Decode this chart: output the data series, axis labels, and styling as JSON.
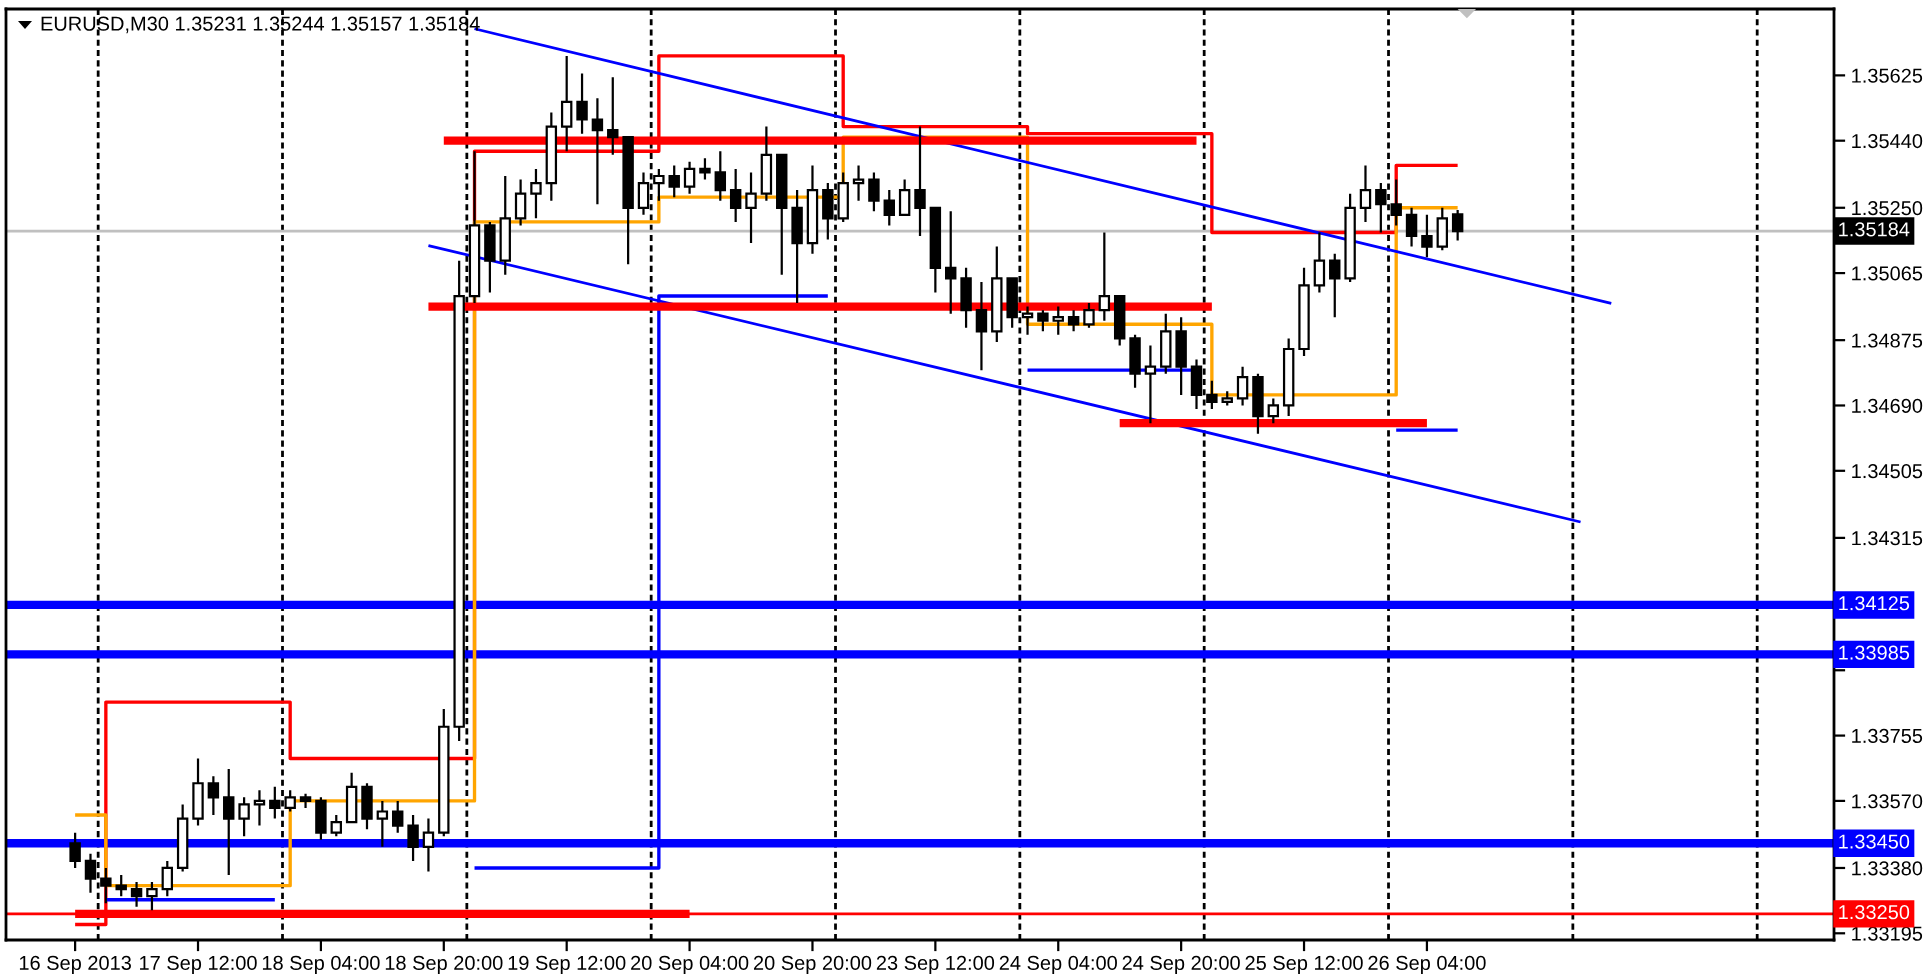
{
  "chart_data": {
    "type": "candlestick",
    "title": "EURUSD,M30 1.35231 1.35244 1.35157 1.35184",
    "color": "#000000",
    "categories": [
      "16 Sep 2013",
      null,
      null,
      null,
      null,
      null,
      null,
      null,
      "17 Sep 12:00",
      null,
      null,
      null,
      null,
      null,
      null,
      null,
      "18 Sep 04:00",
      null,
      null,
      null,
      null,
      null,
      null,
      null,
      "18 Sep 20:00",
      null,
      null,
      null,
      null,
      null,
      null,
      null,
      "19 Sep 12:00",
      null,
      null,
      null,
      null,
      null,
      null,
      null,
      "20 Sep 04:00",
      null,
      null,
      null,
      null,
      null,
      null,
      null,
      "20 Sep 20:00",
      null,
      null,
      null,
      null,
      null,
      null,
      null,
      "23 Sep 12:00",
      null,
      null,
      null,
      null,
      null,
      null,
      null,
      "24 Sep 04:00",
      null,
      null,
      null,
      null,
      null,
      null,
      null,
      "24 Sep 20:00",
      null,
      null,
      null,
      null,
      null,
      null,
      null,
      "25 Sep 12:00",
      null,
      null,
      null,
      null,
      null,
      null,
      null,
      "26 Sep 04:00",
      null,
      null,
      null,
      null,
      null,
      null,
      null,
      null,
      null,
      null,
      null,
      null,
      null,
      null,
      null,
      null,
      null,
      null,
      null,
      null,
      null,
      null,
      null,
      null,
      null,
      null
    ],
    "ohlc": [
      [
        1.3345,
        1.3348,
        1.3338,
        1.334
      ],
      [
        1.334,
        1.3342,
        1.3331,
        1.3335
      ],
      [
        1.3335,
        1.3338,
        1.3328,
        1.3333
      ],
      [
        1.3333,
        1.3336,
        1.333,
        1.3332
      ],
      [
        1.3332,
        1.3334,
        1.3327,
        1.333
      ],
      [
        1.333,
        1.3334,
        1.3326,
        1.3332
      ],
      [
        1.3332,
        1.334,
        1.333,
        1.3338
      ],
      [
        1.3338,
        1.3356,
        1.3337,
        1.3352
      ],
      [
        1.3352,
        1.3369,
        1.335,
        1.3362
      ],
      [
        1.3362,
        1.3364,
        1.3353,
        1.3358
      ],
      [
        1.3358,
        1.3366,
        1.3336,
        1.3352
      ],
      [
        1.3352,
        1.3358,
        1.3347,
        1.3356
      ],
      [
        1.3356,
        1.336,
        1.335,
        1.3357
      ],
      [
        1.3357,
        1.3361,
        1.3352,
        1.3355
      ],
      [
        1.3355,
        1.336,
        1.3354,
        1.3358
      ],
      [
        1.3358,
        1.3359,
        1.3355,
        1.3357
      ],
      [
        1.3357,
        1.3358,
        1.3346,
        1.3348
      ],
      [
        1.3348,
        1.3353,
        1.3347,
        1.3351
      ],
      [
        1.3351,
        1.3365,
        1.3351,
        1.3361
      ],
      [
        1.3361,
        1.3362,
        1.3349,
        1.3352
      ],
      [
        1.3352,
        1.3357,
        1.3344,
        1.3354
      ],
      [
        1.3354,
        1.3357,
        1.3348,
        1.335
      ],
      [
        1.335,
        1.3353,
        1.334,
        1.3344
      ],
      [
        1.3344,
        1.3352,
        1.3337,
        1.3348
      ],
      [
        1.3348,
        1.3383,
        1.3347,
        1.3378
      ],
      [
        1.3378,
        1.351,
        1.3374,
        1.35
      ],
      [
        1.35,
        1.3541,
        1.3498,
        1.352
      ],
      [
        1.352,
        1.3521,
        1.3501,
        1.351
      ],
      [
        1.351,
        1.3534,
        1.3506,
        1.3522
      ],
      [
        1.3522,
        1.3533,
        1.352,
        1.3529
      ],
      [
        1.3529,
        1.3536,
        1.3522,
        1.3532
      ],
      [
        1.3532,
        1.3552,
        1.3527,
        1.3548
      ],
      [
        1.3548,
        1.3568,
        1.3541,
        1.3555
      ],
      [
        1.3555,
        1.3563,
        1.3546,
        1.355
      ],
      [
        1.355,
        1.3556,
        1.3526,
        1.3547
      ],
      [
        1.3547,
        1.3562,
        1.354,
        1.3545
      ],
      [
        1.3545,
        1.3545,
        1.3509,
        1.3525
      ],
      [
        1.3525,
        1.3535,
        1.3523,
        1.3532
      ],
      [
        1.3532,
        1.3536,
        1.3527,
        1.3534
      ],
      [
        1.3534,
        1.3537,
        1.3528,
        1.3531
      ],
      [
        1.3531,
        1.3538,
        1.3529,
        1.3536
      ],
      [
        1.3536,
        1.3539,
        1.3533,
        1.3535
      ],
      [
        1.3535,
        1.3541,
        1.3527,
        1.353
      ],
      [
        1.353,
        1.3536,
        1.3521,
        1.3525
      ],
      [
        1.3525,
        1.3535,
        1.3515,
        1.3529
      ],
      [
        1.3529,
        1.3548,
        1.3527,
        1.354
      ],
      [
        1.354,
        1.354,
        1.3506,
        1.3525
      ],
      [
        1.3525,
        1.353,
        1.3498,
        1.3515
      ],
      [
        1.3515,
        1.3537,
        1.3512,
        1.353
      ],
      [
        1.353,
        1.3532,
        1.3516,
        1.3522
      ],
      [
        1.3522,
        1.3535,
        1.3521,
        1.3532
      ],
      [
        1.3532,
        1.3537,
        1.3527,
        1.3533
      ],
      [
        1.3533,
        1.3535,
        1.3524,
        1.3527
      ],
      [
        1.3527,
        1.353,
        1.352,
        1.3523
      ],
      [
        1.3523,
        1.3533,
        1.3523,
        1.353
      ],
      [
        1.353,
        1.3548,
        1.3517,
        1.3525
      ],
      [
        1.3525,
        1.3525,
        1.3501,
        1.3508
      ],
      [
        1.3508,
        1.3524,
        1.3495,
        1.3505
      ],
      [
        1.3505,
        1.3508,
        1.3491,
        1.3496
      ],
      [
        1.3496,
        1.3504,
        1.3479,
        1.349
      ],
      [
        1.349,
        1.3514,
        1.3487,
        1.3505
      ],
      [
        1.3505,
        1.3505,
        1.3491,
        1.3494
      ],
      [
        1.3494,
        1.3497,
        1.3489,
        1.3495
      ],
      [
        1.3495,
        1.3496,
        1.349,
        1.3493
      ],
      [
        1.3493,
        1.3497,
        1.3489,
        1.3494
      ],
      [
        1.3494,
        1.3496,
        1.349,
        1.3492
      ],
      [
        1.3492,
        1.3498,
        1.3491,
        1.3496
      ],
      [
        1.3496,
        1.3518,
        1.3493,
        1.35
      ],
      [
        1.35,
        1.35,
        1.3486,
        1.3488
      ],
      [
        1.3488,
        1.3489,
        1.3474,
        1.3478
      ],
      [
        1.3478,
        1.3486,
        1.3464,
        1.348
      ],
      [
        1.348,
        1.3495,
        1.3478,
        1.349
      ],
      [
        1.349,
        1.3494,
        1.3472,
        1.348
      ],
      [
        1.348,
        1.3482,
        1.3468,
        1.3472
      ],
      [
        1.3472,
        1.3476,
        1.3468,
        1.347
      ],
      [
        1.347,
        1.3473,
        1.3469,
        1.3471
      ],
      [
        1.3471,
        1.348,
        1.3469,
        1.3477
      ],
      [
        1.3477,
        1.3478,
        1.3461,
        1.3466
      ],
      [
        1.3466,
        1.3471,
        1.3464,
        1.3469
      ],
      [
        1.3469,
        1.3488,
        1.3466,
        1.3485
      ],
      [
        1.3485,
        1.3508,
        1.3483,
        1.3503
      ],
      [
        1.3503,
        1.3518,
        1.3501,
        1.351
      ],
      [
        1.351,
        1.3512,
        1.3494,
        1.3505
      ],
      [
        1.3505,
        1.3529,
        1.3504,
        1.3525
      ],
      [
        1.3525,
        1.3537,
        1.3521,
        1.353
      ],
      [
        1.353,
        1.3532,
        1.3518,
        1.3526
      ],
      [
        1.3526,
        1.3533,
        1.352,
        1.3523
      ],
      [
        1.3523,
        1.3525,
        1.3514,
        1.3517
      ],
      [
        1.3517,
        1.3523,
        1.3511,
        1.3514
      ],
      [
        1.3514,
        1.3525,
        1.3513,
        1.3522
      ],
      [
        1.35231,
        1.35244,
        1.35157,
        1.35184
      ],
      null,
      null,
      null,
      null,
      null,
      null,
      null,
      null,
      null,
      null,
      null,
      null,
      null,
      null,
      null,
      null,
      null,
      null,
      null,
      null,
      null,
      null,
      null,
      null
    ],
    "series": [
      {
        "type": "step",
        "color": "#ff0000",
        "values": [
          1.3322,
          1.3322,
          1.3385,
          1.3385,
          1.3385,
          1.3385,
          1.3385,
          1.3385,
          1.3385,
          1.3385,
          1.3385,
          1.3385,
          1.3385,
          1.3385,
          1.3369,
          1.3369,
          1.3369,
          1.3369,
          1.3369,
          1.3369,
          1.3369,
          1.3369,
          1.3369,
          1.3369,
          1.3369,
          1.3369,
          1.3541,
          1.3541,
          1.3541,
          1.3541,
          1.3541,
          1.3541,
          1.3541,
          1.3541,
          1.3541,
          1.3541,
          1.3541,
          1.3541,
          1.3568,
          1.3568,
          1.3568,
          1.3568,
          1.3568,
          1.3568,
          1.3568,
          1.3568,
          1.3568,
          1.3568,
          1.3568,
          1.3568,
          1.3548,
          1.3548,
          1.3548,
          1.3548,
          1.3548,
          1.3548,
          1.3548,
          1.3548,
          1.3548,
          1.3548,
          1.3548,
          1.3548,
          1.3546,
          1.3546,
          1.3546,
          1.3546,
          1.3546,
          1.3546,
          1.3546,
          1.3546,
          1.3546,
          1.3546,
          1.3546,
          1.3546,
          1.3518,
          1.3518,
          1.3518,
          1.3518,
          1.3518,
          1.3518,
          1.3518,
          1.3518,
          1.3518,
          1.3518,
          1.3518,
          1.3518,
          1.3537,
          1.3537,
          1.3537,
          1.3537,
          1.3537,
          null,
          null,
          null,
          null,
          null,
          null,
          null,
          null,
          null,
          null,
          null,
          null,
          null,
          null,
          null,
          null,
          null,
          null,
          null,
          null,
          null,
          null,
          null,
          null
        ]
      },
      {
        "type": "step",
        "color": "#ffa500",
        "values": [
          1.3353,
          1.3353,
          1.3333,
          1.3333,
          1.3333,
          1.3333,
          1.3333,
          1.3333,
          1.3333,
          1.3333,
          1.3333,
          1.3333,
          1.3333,
          1.3333,
          1.3357,
          1.3357,
          1.3357,
          1.3357,
          1.3357,
          1.3357,
          1.3357,
          1.3357,
          1.3357,
          1.3357,
          1.3357,
          1.3357,
          1.3521,
          1.3521,
          1.3521,
          1.3521,
          1.3521,
          1.3521,
          1.3521,
          1.3521,
          1.3521,
          1.3521,
          1.3521,
          1.3521,
          1.3528,
          1.3528,
          1.3528,
          1.3528,
          1.3528,
          1.3528,
          1.3528,
          1.3528,
          1.3528,
          1.3528,
          1.3528,
          1.3528,
          1.3545,
          1.3545,
          1.3545,
          1.3545,
          1.3545,
          1.3545,
          1.3545,
          1.3545,
          1.3545,
          1.3545,
          1.3545,
          1.3545,
          1.3492,
          1.3492,
          1.3492,
          1.3492,
          1.3492,
          1.3492,
          1.3492,
          1.3492,
          1.3492,
          1.3492,
          1.3492,
          1.3492,
          1.3472,
          1.3472,
          1.3472,
          1.3472,
          1.3472,
          1.3472,
          1.3472,
          1.3472,
          1.3472,
          1.3472,
          1.3472,
          1.3472,
          1.3525,
          1.3525,
          1.3525,
          1.3525,
          1.3525,
          null,
          null,
          null,
          null,
          null,
          null,
          null,
          null,
          null,
          null,
          null,
          null,
          null,
          null,
          null,
          null,
          null,
          null,
          null,
          null,
          null,
          null,
          null,
          null
        ]
      },
      {
        "type": "step",
        "color": "#0000ff",
        "values": [
          null,
          null,
          1.3329,
          1.3329,
          1.3329,
          1.3329,
          1.3329,
          1.3329,
          1.3329,
          1.3329,
          1.3329,
          1.3329,
          1.3329,
          1.3329,
          null,
          null,
          null,
          null,
          null,
          null,
          null,
          null,
          null,
          null,
          null,
          null,
          1.3338,
          1.3338,
          1.3338,
          1.3338,
          1.3338,
          1.3338,
          1.3338,
          1.3338,
          1.3338,
          1.3338,
          1.3338,
          1.3338,
          1.35,
          1.35,
          1.35,
          1.35,
          1.35,
          1.35,
          1.35,
          1.35,
          1.35,
          1.35,
          1.35,
          1.35,
          null,
          null,
          null,
          null,
          null,
          null,
          null,
          null,
          null,
          null,
          null,
          null,
          1.3479,
          1.3479,
          1.3479,
          1.3479,
          1.3479,
          1.3479,
          1.3479,
          1.3479,
          1.3479,
          1.3479,
          1.3479,
          1.3479,
          null,
          null,
          null,
          null,
          null,
          null,
          null,
          null,
          null,
          null,
          null,
          null,
          1.3462,
          1.3462,
          1.3462,
          1.3462,
          1.3462,
          null,
          null,
          null,
          null,
          null,
          null,
          null,
          null,
          null,
          null,
          null,
          null,
          null,
          null,
          null,
          null,
          null,
          null,
          null,
          null,
          null,
          null,
          null,
          null
        ]
      },
      {
        "type": "line",
        "color": "#0000ff",
        "values": [
          null,
          null,
          null,
          null,
          null,
          null,
          null,
          null,
          null,
          null,
          null,
          null,
          null,
          null,
          null,
          null,
          null,
          null,
          null,
          null,
          null,
          null,
          null,
          null,
          null,
          null,
          1.35757,
          null,
          null,
          null,
          null,
          null,
          null,
          null,
          null,
          null,
          null,
          null,
          null,
          null,
          null,
          null,
          null,
          null,
          null,
          null,
          null,
          null,
          null,
          null,
          null,
          null,
          null,
          null,
          null,
          null,
          null,
          null,
          null,
          null,
          null,
          null,
          null,
          null,
          null,
          null,
          null,
          null,
          null,
          null,
          null,
          null,
          null,
          null,
          null,
          null,
          null,
          null,
          null,
          null,
          null,
          null,
          null,
          null,
          null,
          null,
          null,
          null,
          null,
          null,
          null,
          null,
          null,
          null,
          null,
          null,
          null,
          null,
          null,
          null,
          1.34979,
          null,
          null,
          null,
          null,
          null,
          null,
          null,
          null,
          null,
          null,
          null,
          null,
          null,
          null
        ]
      },
      {
        "type": "line",
        "color": "#0000ff",
        "values": [
          null,
          null,
          null,
          null,
          null,
          null,
          null,
          null,
          null,
          null,
          null,
          null,
          null,
          null,
          null,
          null,
          null,
          null,
          null,
          null,
          null,
          null,
          null,
          1.35143,
          null,
          null,
          null,
          null,
          null,
          null,
          null,
          null,
          null,
          null,
          null,
          null,
          null,
          null,
          null,
          null,
          null,
          null,
          null,
          null,
          null,
          null,
          null,
          null,
          null,
          null,
          null,
          null,
          null,
          null,
          null,
          null,
          null,
          null,
          null,
          null,
          null,
          null,
          null,
          null,
          null,
          null,
          null,
          null,
          null,
          null,
          null,
          null,
          null,
          null,
          null,
          null,
          null,
          null,
          null,
          null,
          null,
          null,
          null,
          null,
          null,
          null,
          null,
          null,
          null,
          null,
          null,
          null,
          null,
          null,
          null,
          null,
          null,
          null,
          1.3436,
          null,
          null,
          null,
          null,
          null,
          null,
          null,
          null,
          null,
          null,
          null,
          null,
          null,
          null,
          null,
          null
        ]
      },
      {
        "type": "line",
        "color": "#ff0000",
        "values": [
          null,
          null,
          null,
          null,
          null,
          null,
          null,
          null,
          null,
          null,
          null,
          null,
          null,
          null,
          null,
          null,
          null,
          null,
          null,
          null,
          null,
          null,
          null,
          null,
          1.3544,
          1.3544,
          1.3544,
          1.3544,
          1.3544,
          1.3544,
          1.3544,
          1.3544,
          1.3544,
          1.3544,
          1.3544,
          1.3544,
          1.3544,
          1.3544,
          1.3544,
          1.3544,
          1.3544,
          1.3544,
          1.3544,
          1.3544,
          1.3544,
          1.3544,
          1.3544,
          1.3544,
          1.3544,
          1.3544,
          1.3544,
          1.3544,
          1.3544,
          1.3544,
          1.3544,
          1.3544,
          1.3544,
          1.3544,
          1.3544,
          1.3544,
          1.3544,
          1.3544,
          1.3544,
          1.3544,
          1.3544,
          1.3544,
          1.3544,
          1.3544,
          1.3544,
          1.3544,
          1.3544,
          1.3544,
          1.3544,
          1.3544,
          null,
          null,
          null,
          null,
          null,
          null,
          null,
          null,
          null,
          null,
          null,
          null,
          null,
          null,
          null,
          null,
          null,
          null,
          null,
          null,
          null,
          null,
          null,
          null,
          null,
          null,
          null,
          null,
          null,
          null,
          null,
          null,
          null,
          null,
          null,
          null,
          null,
          null,
          null,
          null,
          null
        ]
      },
      {
        "type": "line",
        "color": "#ff0000",
        "values": [
          null,
          null,
          null,
          null,
          null,
          null,
          null,
          null,
          null,
          null,
          null,
          null,
          null,
          null,
          null,
          null,
          null,
          null,
          null,
          null,
          null,
          null,
          null,
          1.3497,
          1.3497,
          1.3497,
          1.3497,
          1.3497,
          1.3497,
          1.3497,
          1.3497,
          1.3497,
          1.3497,
          1.3497,
          1.3497,
          1.3497,
          1.3497,
          1.3497,
          1.3497,
          1.3497,
          1.3497,
          1.3497,
          1.3497,
          1.3497,
          1.3497,
          1.3497,
          1.3497,
          1.3497,
          1.3497,
          1.3497,
          1.3497,
          1.3497,
          1.3497,
          1.3497,
          1.3497,
          1.3497,
          1.3497,
          1.3497,
          1.3497,
          1.3497,
          1.3497,
          1.3497,
          1.3497,
          1.3497,
          1.3497,
          1.3497,
          1.3497,
          1.3497,
          1.3497,
          1.3497,
          1.3497,
          1.3497,
          1.3497,
          1.3497,
          1.3497,
          null,
          null,
          null,
          null,
          null,
          null,
          null,
          null,
          null,
          null,
          null,
          null,
          null,
          null,
          null,
          null,
          null,
          null,
          null,
          null,
          null,
          null,
          null,
          null,
          null,
          null,
          null,
          null,
          null,
          null,
          null,
          null,
          null,
          null,
          null,
          null,
          null,
          null,
          null,
          null
        ]
      },
      {
        "type": "line",
        "color": "#ff0000",
        "values": [
          null,
          null,
          null,
          null,
          null,
          null,
          null,
          null,
          null,
          null,
          null,
          null,
          null,
          null,
          null,
          null,
          null,
          null,
          null,
          null,
          null,
          null,
          null,
          null,
          null,
          null,
          null,
          null,
          null,
          null,
          null,
          null,
          null,
          null,
          null,
          null,
          null,
          null,
          null,
          null,
          null,
          null,
          null,
          null,
          null,
          null,
          null,
          null,
          null,
          null,
          null,
          null,
          null,
          null,
          null,
          null,
          null,
          null,
          null,
          null,
          null,
          null,
          null,
          null,
          null,
          null,
          null,
          null,
          1.3464,
          1.3464,
          1.3464,
          1.3464,
          1.3464,
          1.3464,
          1.3464,
          1.3464,
          1.3464,
          1.3464,
          1.3464,
          1.3464,
          1.3464,
          1.3464,
          1.3464,
          1.3464,
          1.3464,
          1.3464,
          1.3464,
          1.3464,
          1.3464,
          null,
          null,
          null,
          null,
          null,
          null,
          null,
          null,
          null,
          null,
          null,
          null,
          null,
          null,
          null,
          null,
          null,
          null,
          null,
          null,
          null,
          null,
          null,
          null,
          null,
          null
        ]
      },
      {
        "type": "line",
        "color": "#ff0000",
        "values": [
          1.3325,
          1.3325,
          1.3325,
          1.3325,
          1.3325,
          1.3325,
          1.3325,
          1.3325,
          1.3325,
          1.3325,
          1.3325,
          1.3325,
          1.3325,
          1.3325,
          1.3325,
          1.3325,
          1.3325,
          1.3325,
          1.3325,
          1.3325,
          1.3325,
          1.3325,
          1.3325,
          1.3325,
          1.3325,
          1.3325,
          1.3325,
          1.3325,
          1.3325,
          1.3325,
          1.3325,
          1.3325,
          1.3325,
          1.3325,
          1.3325,
          1.3325,
          1.3325,
          1.3325,
          1.3325,
          1.3325,
          1.3325,
          null,
          null,
          null,
          null,
          null,
          null,
          null,
          null,
          null,
          null,
          null,
          null,
          null,
          null,
          null,
          null,
          null,
          null,
          null,
          null,
          null,
          null,
          null,
          null,
          null,
          null,
          null,
          null,
          null,
          null,
          null,
          null,
          null,
          null,
          null,
          null,
          null,
          null,
          null,
          null,
          null,
          null,
          null,
          null,
          null,
          null,
          null,
          null,
          null,
          null,
          null,
          null,
          null,
          null,
          null,
          null,
          null,
          null,
          null,
          null,
          null,
          null,
          null,
          null,
          null,
          null,
          null,
          null,
          null,
          null,
          null,
          null,
          null,
          null
        ]
      }
    ],
    "ref_lines": [
      {
        "axis": "y",
        "value": 1.34125,
        "label": "1.34125",
        "color": "#0000ff"
      },
      {
        "axis": "y",
        "value": 1.33985,
        "label": "1.33985",
        "color": "#0000ff"
      },
      {
        "axis": "y",
        "value": 1.3345,
        "label": "1.33450",
        "color": "#0000ff"
      },
      {
        "axis": "y",
        "value": 1.3325,
        "label": "1.33250",
        "color": "#ff0000"
      },
      {
        "axis": "y",
        "value": 1.35184,
        "label": "1.35184",
        "color": "#c0c0c0"
      }
    ],
    "ylim": [
      1.33176,
      1.35813
    ],
    "yticks": [
      1.35625,
      {
        "value": 1.3544,
        "label": "1.35440"
      },
      {
        "value": 1.3525,
        "label": "1.35250"
      },
      1.35065,
      1.34875,
      {
        "value": 1.3469,
        "label": "1.34690"
      },
      1.34505,
      1.34315,
      {
        "value": 1.3394,
        "label": null
      },
      1.33755,
      {
        "value": 1.3357,
        "label": "1.33570"
      },
      {
        "value": 1.3338,
        "label": "1.33380"
      },
      1.33195
    ]
  }
}
